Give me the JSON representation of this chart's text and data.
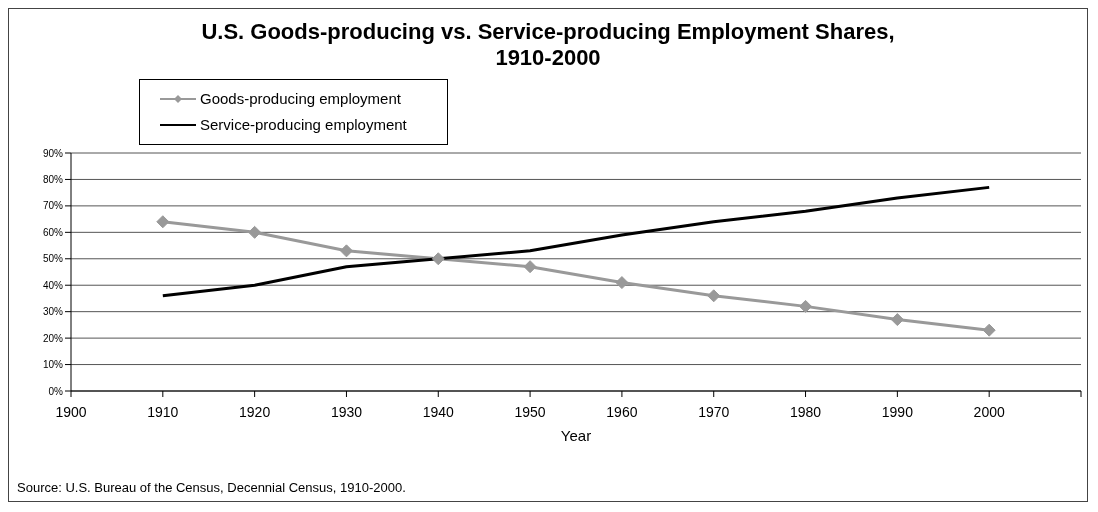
{
  "chart_data": {
    "type": "line",
    "title": "U.S. Goods-producing vs. Service-producing Employment Shares, 1910-2000",
    "xlabel": "Year",
    "x": [
      1910,
      1920,
      1930,
      1940,
      1950,
      1960,
      1970,
      1980,
      1990,
      2000
    ],
    "series": [
      {
        "name": "Goods-producing employment",
        "color": "#999999",
        "marker": "diamond",
        "values": [
          64,
          60,
          53,
          50,
          47,
          41,
          36,
          32,
          27,
          23
        ]
      },
      {
        "name": "Service-producing employment",
        "color": "#000000",
        "marker": "none",
        "values": [
          36,
          40,
          47,
          50,
          53,
          59,
          64,
          68,
          73,
          77
        ]
      }
    ],
    "xlim": [
      1900,
      2010
    ],
    "xticks": [
      1900,
      1910,
      1920,
      1930,
      1940,
      1950,
      1960,
      1970,
      1980,
      1990,
      2000,
      {
        "value": 2010,
        "label": null
      }
    ],
    "ylim": [
      0,
      90
    ],
    "yticks": [
      {
        "value": 0,
        "label": "0%"
      },
      {
        "value": 10,
        "label": "10%"
      },
      {
        "value": 20,
        "label": "20%"
      },
      {
        "value": 30,
        "label": "30%"
      },
      {
        "value": 40,
        "label": "40%"
      },
      {
        "value": 50,
        "label": "50%"
      },
      {
        "value": 60,
        "label": "60%"
      },
      {
        "value": 70,
        "label": "70%"
      },
      {
        "value": 80,
        "label": "80%"
      },
      {
        "value": 90,
        "label": "90%"
      }
    ],
    "grid": "y",
    "legend": "top left",
    "annotations": [
      "Source: U.S. Bureau of the Census, Decennial Census, 1910-2000."
    ]
  }
}
